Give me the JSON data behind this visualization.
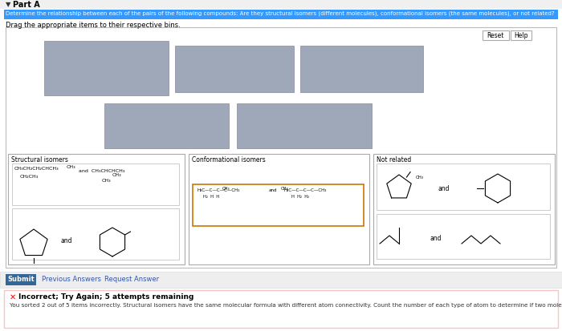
{
  "bg_color": "#e8e8e8",
  "page_bg": "#ffffff",
  "part_a_text": "Part A",
  "instruction_text": "Determine the relationship between each of the pairs of the following compounds: Are they structural isomers (different molecules), conformational isomers (the same molecules), or not related?",
  "instruction_bg": "#3399ff",
  "drag_text": "Drag the appropriate items to their respective bins.",
  "gray_box_color": "#9fa8b8",
  "section_labels": [
    "Structural isomers",
    "Conformational isomers",
    "Not related"
  ],
  "submit_bg": "#336699",
  "submit_text": "Submit",
  "prev_text": "Previous Answers",
  "req_text": "Request Answer",
  "error_title": "Incorrect; Try Again; 5 attempts remaining",
  "error_text": "You sorted 2 out of 5 items incorrectly. Structural isomers have the same molecular formula with different atom connectivity. Count the number of each type of atom to determine if two molecules have the same molecular formula.",
  "reset_text": "Reset",
  "help_text": "Help",
  "orange_border": "#cc7700",
  "panel_bg": "#ffffff",
  "panel_border": "#cccccc",
  "inner_border": "#cccccc",
  "error_border": "#f5c6c6"
}
